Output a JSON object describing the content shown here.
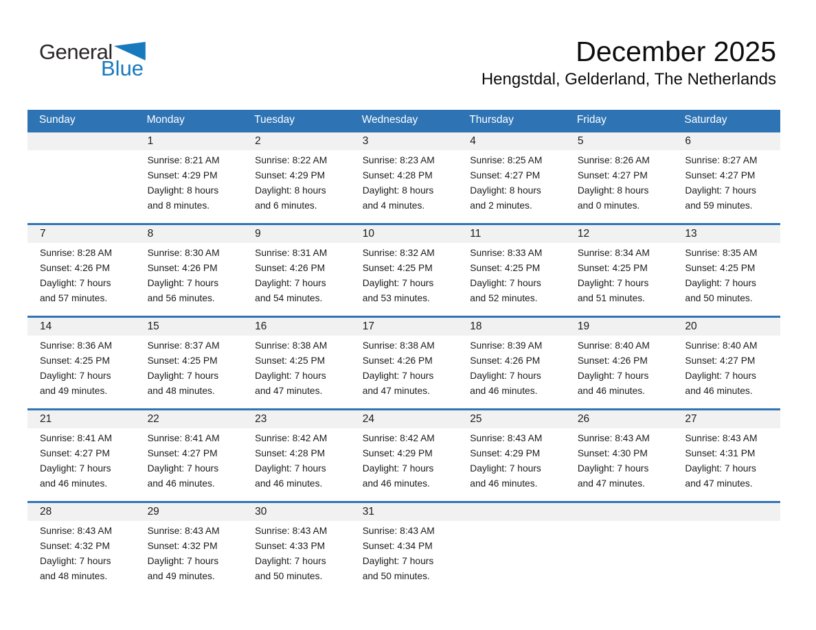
{
  "logo": {
    "text_general": "General",
    "text_blue": "Blue",
    "triangle_color": "#1879BD"
  },
  "header": {
    "title": "December 2025",
    "subtitle": "Hengstdal, Gelderland, The Netherlands"
  },
  "colors": {
    "header_blue": "#2E74B5",
    "band_gray": "#F1F1F1"
  },
  "calendar": {
    "day_headers": [
      "Sunday",
      "Monday",
      "Tuesday",
      "Wednesday",
      "Thursday",
      "Friday",
      "Saturday"
    ],
    "weeks": [
      {
        "cells": [
          {
            "num": ""
          },
          {
            "num": "1",
            "sunrise": "Sunrise: 8:21 AM",
            "sunset": "Sunset: 4:29 PM",
            "daylight1": "Daylight: 8 hours",
            "daylight2": "and 8 minutes."
          },
          {
            "num": "2",
            "sunrise": "Sunrise: 8:22 AM",
            "sunset": "Sunset: 4:29 PM",
            "daylight1": "Daylight: 8 hours",
            "daylight2": "and 6 minutes."
          },
          {
            "num": "3",
            "sunrise": "Sunrise: 8:23 AM",
            "sunset": "Sunset: 4:28 PM",
            "daylight1": "Daylight: 8 hours",
            "daylight2": "and 4 minutes."
          },
          {
            "num": "4",
            "sunrise": "Sunrise: 8:25 AM",
            "sunset": "Sunset: 4:27 PM",
            "daylight1": "Daylight: 8 hours",
            "daylight2": "and 2 minutes."
          },
          {
            "num": "5",
            "sunrise": "Sunrise: 8:26 AM",
            "sunset": "Sunset: 4:27 PM",
            "daylight1": "Daylight: 8 hours",
            "daylight2": "and 0 minutes."
          },
          {
            "num": "6",
            "sunrise": "Sunrise: 8:27 AM",
            "sunset": "Sunset: 4:27 PM",
            "daylight1": "Daylight: 7 hours",
            "daylight2": "and 59 minutes."
          }
        ]
      },
      {
        "cells": [
          {
            "num": "7",
            "sunrise": "Sunrise: 8:28 AM",
            "sunset": "Sunset: 4:26 PM",
            "daylight1": "Daylight: 7 hours",
            "daylight2": "and 57 minutes."
          },
          {
            "num": "8",
            "sunrise": "Sunrise: 8:30 AM",
            "sunset": "Sunset: 4:26 PM",
            "daylight1": "Daylight: 7 hours",
            "daylight2": "and 56 minutes."
          },
          {
            "num": "9",
            "sunrise": "Sunrise: 8:31 AM",
            "sunset": "Sunset: 4:26 PM",
            "daylight1": "Daylight: 7 hours",
            "daylight2": "and 54 minutes."
          },
          {
            "num": "10",
            "sunrise": "Sunrise: 8:32 AM",
            "sunset": "Sunset: 4:25 PM",
            "daylight1": "Daylight: 7 hours",
            "daylight2": "and 53 minutes."
          },
          {
            "num": "11",
            "sunrise": "Sunrise: 8:33 AM",
            "sunset": "Sunset: 4:25 PM",
            "daylight1": "Daylight: 7 hours",
            "daylight2": "and 52 minutes."
          },
          {
            "num": "12",
            "sunrise": "Sunrise: 8:34 AM",
            "sunset": "Sunset: 4:25 PM",
            "daylight1": "Daylight: 7 hours",
            "daylight2": "and 51 minutes."
          },
          {
            "num": "13",
            "sunrise": "Sunrise: 8:35 AM",
            "sunset": "Sunset: 4:25 PM",
            "daylight1": "Daylight: 7 hours",
            "daylight2": "and 50 minutes."
          }
        ]
      },
      {
        "cells": [
          {
            "num": "14",
            "sunrise": "Sunrise: 8:36 AM",
            "sunset": "Sunset: 4:25 PM",
            "daylight1": "Daylight: 7 hours",
            "daylight2": "and 49 minutes."
          },
          {
            "num": "15",
            "sunrise": "Sunrise: 8:37 AM",
            "sunset": "Sunset: 4:25 PM",
            "daylight1": "Daylight: 7 hours",
            "daylight2": "and 48 minutes."
          },
          {
            "num": "16",
            "sunrise": "Sunrise: 8:38 AM",
            "sunset": "Sunset: 4:25 PM",
            "daylight1": "Daylight: 7 hours",
            "daylight2": "and 47 minutes."
          },
          {
            "num": "17",
            "sunrise": "Sunrise: 8:38 AM",
            "sunset": "Sunset: 4:26 PM",
            "daylight1": "Daylight: 7 hours",
            "daylight2": "and 47 minutes."
          },
          {
            "num": "18",
            "sunrise": "Sunrise: 8:39 AM",
            "sunset": "Sunset: 4:26 PM",
            "daylight1": "Daylight: 7 hours",
            "daylight2": "and 46 minutes."
          },
          {
            "num": "19",
            "sunrise": "Sunrise: 8:40 AM",
            "sunset": "Sunset: 4:26 PM",
            "daylight1": "Daylight: 7 hours",
            "daylight2": "and 46 minutes."
          },
          {
            "num": "20",
            "sunrise": "Sunrise: 8:40 AM",
            "sunset": "Sunset: 4:27 PM",
            "daylight1": "Daylight: 7 hours",
            "daylight2": "and 46 minutes."
          }
        ]
      },
      {
        "cells": [
          {
            "num": "21",
            "sunrise": "Sunrise: 8:41 AM",
            "sunset": "Sunset: 4:27 PM",
            "daylight1": "Daylight: 7 hours",
            "daylight2": "and 46 minutes."
          },
          {
            "num": "22",
            "sunrise": "Sunrise: 8:41 AM",
            "sunset": "Sunset: 4:27 PM",
            "daylight1": "Daylight: 7 hours",
            "daylight2": "and 46 minutes."
          },
          {
            "num": "23",
            "sunrise": "Sunrise: 8:42 AM",
            "sunset": "Sunset: 4:28 PM",
            "daylight1": "Daylight: 7 hours",
            "daylight2": "and 46 minutes."
          },
          {
            "num": "24",
            "sunrise": "Sunrise: 8:42 AM",
            "sunset": "Sunset: 4:29 PM",
            "daylight1": "Daylight: 7 hours",
            "daylight2": "and 46 minutes."
          },
          {
            "num": "25",
            "sunrise": "Sunrise: 8:43 AM",
            "sunset": "Sunset: 4:29 PM",
            "daylight1": "Daylight: 7 hours",
            "daylight2": "and 46 minutes."
          },
          {
            "num": "26",
            "sunrise": "Sunrise: 8:43 AM",
            "sunset": "Sunset: 4:30 PM",
            "daylight1": "Daylight: 7 hours",
            "daylight2": "and 47 minutes."
          },
          {
            "num": "27",
            "sunrise": "Sunrise: 8:43 AM",
            "sunset": "Sunset: 4:31 PM",
            "daylight1": "Daylight: 7 hours",
            "daylight2": "and 47 minutes."
          }
        ]
      },
      {
        "cells": [
          {
            "num": "28",
            "sunrise": "Sunrise: 8:43 AM",
            "sunset": "Sunset: 4:32 PM",
            "daylight1": "Daylight: 7 hours",
            "daylight2": "and 48 minutes."
          },
          {
            "num": "29",
            "sunrise": "Sunrise: 8:43 AM",
            "sunset": "Sunset: 4:32 PM",
            "daylight1": "Daylight: 7 hours",
            "daylight2": "and 49 minutes."
          },
          {
            "num": "30",
            "sunrise": "Sunrise: 8:43 AM",
            "sunset": "Sunset: 4:33 PM",
            "daylight1": "Daylight: 7 hours",
            "daylight2": "and 50 minutes."
          },
          {
            "num": "31",
            "sunrise": "Sunrise: 8:43 AM",
            "sunset": "Sunset: 4:34 PM",
            "daylight1": "Daylight: 7 hours",
            "daylight2": "and 50 minutes."
          },
          {
            "num": ""
          },
          {
            "num": ""
          },
          {
            "num": ""
          }
        ]
      }
    ]
  }
}
